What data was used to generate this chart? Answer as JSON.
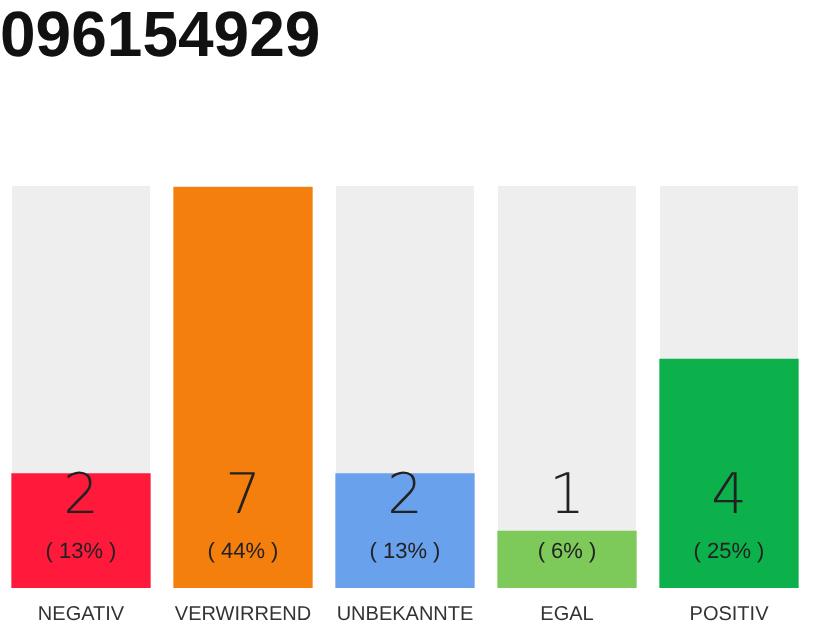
{
  "chart_data": {
    "type": "bar",
    "title": "096154929",
    "categories": [
      "NEGATIV",
      "VERWIRREND",
      "UNBEKANNTE",
      "EGAL",
      "POSITIV"
    ],
    "values": [
      2,
      7,
      2,
      1,
      4
    ],
    "colors": [
      "#ff1a3c",
      "#f57f0c",
      "#6aa1ec",
      "#7dca5a",
      "#0db14b"
    ],
    "ylim": [
      0,
      7
    ],
    "data_labels": true,
    "annotations": [
      "( 13% )",
      "( 44% )",
      "( 13% )",
      "( 6% )",
      "( 25% )"
    ],
    "grid": false,
    "legend": false
  }
}
